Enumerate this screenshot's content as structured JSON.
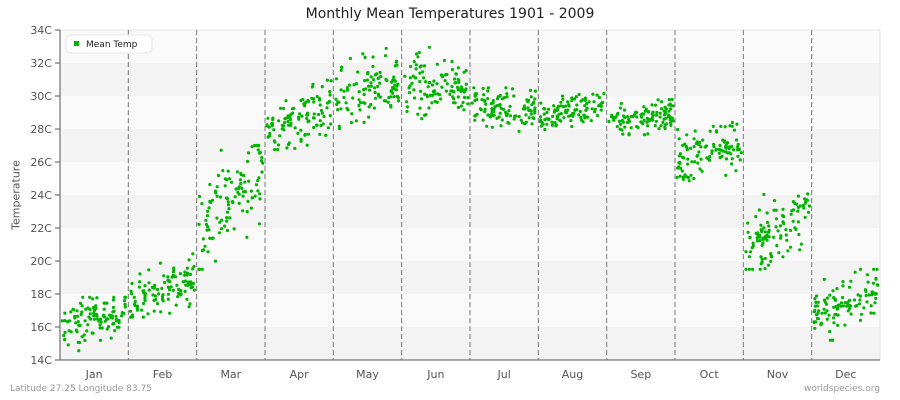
{
  "title": "Monthly Mean Temperatures 1901 - 2009",
  "footer": {
    "location": "Latitude 27.25 Longitude 83.75",
    "source": "worldspecies.org"
  },
  "colors": {
    "series": "#00b400",
    "band_light": "#fafafa",
    "band_dark": "#f3f3f3",
    "divider": "#777777",
    "axis": "#555555"
  },
  "chart_data": {
    "type": "scatter",
    "title": "Monthly Mean Temperatures 1901 - 2009",
    "xlabel": "",
    "ylabel": "Temperature",
    "ylim": [
      14,
      34
    ],
    "yticks": [
      "14C",
      "16C",
      "18C",
      "20C",
      "22C",
      "24C",
      "26C",
      "28C",
      "30C",
      "32C",
      "34C"
    ],
    "categories": [
      "Jan",
      "Feb",
      "Mar",
      "Apr",
      "May",
      "Jun",
      "Jul",
      "Aug",
      "Sep",
      "Oct",
      "Nov",
      "Dec"
    ],
    "legend": {
      "entries": [
        "Mean Temp"
      ],
      "position": "top-left"
    },
    "grid": "alternating horizontal bands, dashed vertical month dividers",
    "series": [
      {
        "name": "Mean Temp",
        "points_per_month": 109,
        "monthly_ranges": [
          {
            "month": "Jan",
            "min": 14.0,
            "max": 17.8,
            "start_mean": 15.8,
            "end_mean": 17.2
          },
          {
            "month": "Feb",
            "min": 16.6,
            "max": 20.5,
            "start_mean": 17.5,
            "end_mean": 19.0
          },
          {
            "month": "Mar",
            "min": 19.5,
            "max": 27.0,
            "start_mean": 21.5,
            "end_mean": 26.0
          },
          {
            "month": "Apr",
            "min": 26.5,
            "max": 31.2,
            "start_mean": 27.8,
            "end_mean": 29.5
          },
          {
            "month": "May",
            "min": 27.5,
            "max": 33.0,
            "start_mean": 29.5,
            "end_mean": 30.8
          },
          {
            "month": "Jun",
            "min": 28.3,
            "max": 33.4,
            "start_mean": 30.5,
            "end_mean": 30.8
          },
          {
            "month": "Jul",
            "min": 27.3,
            "max": 30.5,
            "start_mean": 29.3,
            "end_mean": 29.2
          },
          {
            "month": "Aug",
            "min": 27.9,
            "max": 30.2,
            "start_mean": 28.8,
            "end_mean": 29.5
          },
          {
            "month": "Sep",
            "min": 27.4,
            "max": 30.3,
            "start_mean": 28.4,
            "end_mean": 29.0
          },
          {
            "month": "Oct",
            "min": 23.9,
            "max": 28.6,
            "start_mean": 26.0,
            "end_mean": 27.3
          },
          {
            "month": "Nov",
            "min": 19.5,
            "max": 24.5,
            "start_mean": 20.7,
            "end_mean": 23.0
          },
          {
            "month": "Dec",
            "min": 15.2,
            "max": 19.5,
            "start_mean": 16.6,
            "end_mean": 18.3
          }
        ]
      }
    ]
  }
}
